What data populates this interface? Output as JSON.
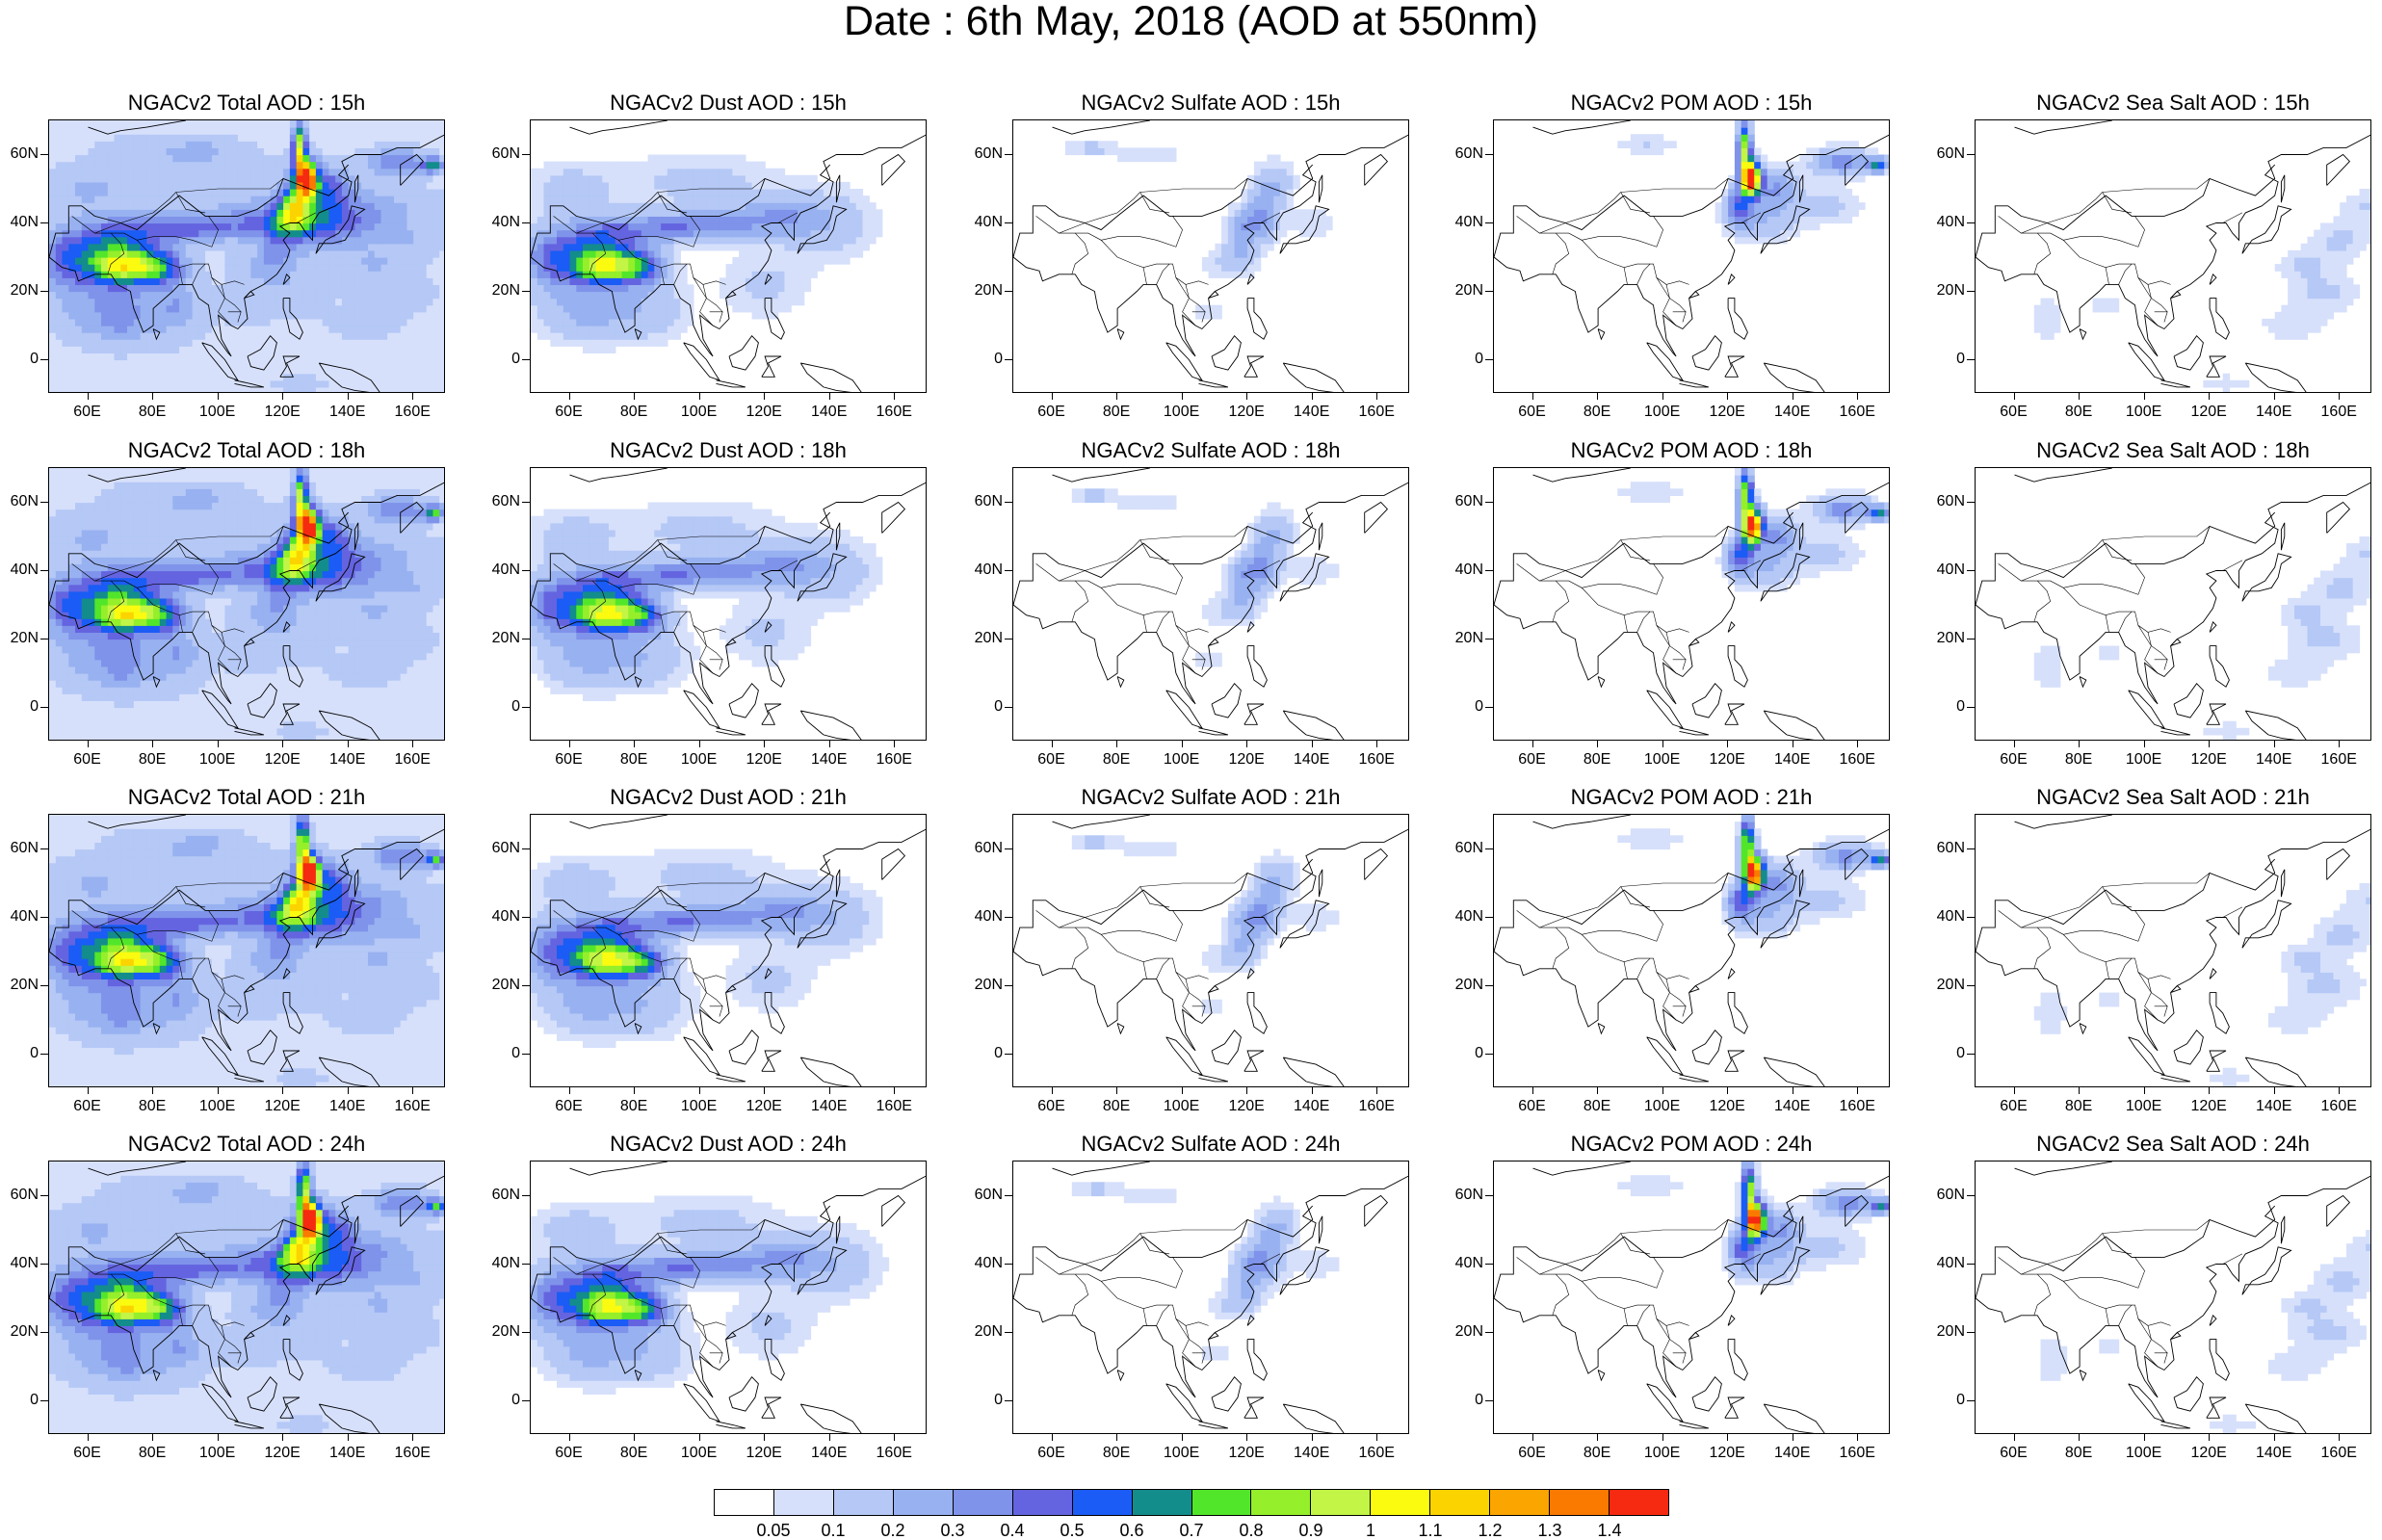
{
  "title": "Date : 6th May, 2018 (AOD at 550nm)",
  "axes": {
    "lon_labels": [
      "60E",
      "80E",
      "100E",
      "120E",
      "140E",
      "160E"
    ],
    "lon_values": [
      60,
      80,
      100,
      120,
      140,
      160
    ],
    "lat_labels": [
      "60N",
      "40N",
      "20N",
      "0"
    ],
    "lat_values": [
      60,
      40,
      20,
      0
    ],
    "lon_range": [
      48,
      170
    ],
    "lat_range": [
      -10,
      70
    ]
  },
  "panels": [
    {
      "title": "NGACv2 Total AOD : 15h",
      "species": "total",
      "hour": 15
    },
    {
      "title": "NGACv2 Dust AOD : 15h",
      "species": "dust",
      "hour": 15
    },
    {
      "title": "NGACv2 Sulfate AOD : 15h",
      "species": "sulfate",
      "hour": 15
    },
    {
      "title": "NGACv2 POM AOD : 15h",
      "species": "pom",
      "hour": 15
    },
    {
      "title": "NGACv2 Sea Salt AOD : 15h",
      "species": "seasalt",
      "hour": 15
    },
    {
      "title": "NGACv2 Total AOD : 18h",
      "species": "total",
      "hour": 18
    },
    {
      "title": "NGACv2 Dust AOD : 18h",
      "species": "dust",
      "hour": 18
    },
    {
      "title": "NGACv2 Sulfate AOD : 18h",
      "species": "sulfate",
      "hour": 18
    },
    {
      "title": "NGACv2 POM AOD : 18h",
      "species": "pom",
      "hour": 18
    },
    {
      "title": "NGACv2 Sea Salt AOD : 18h",
      "species": "seasalt",
      "hour": 18
    },
    {
      "title": "NGACv2 Total AOD : 21h",
      "species": "total",
      "hour": 21
    },
    {
      "title": "NGACv2 Dust AOD : 21h",
      "species": "dust",
      "hour": 21
    },
    {
      "title": "NGACv2 Sulfate AOD : 21h",
      "species": "sulfate",
      "hour": 21
    },
    {
      "title": "NGACv2 POM AOD : 21h",
      "species": "pom",
      "hour": 21
    },
    {
      "title": "NGACv2 Sea Salt AOD : 21h",
      "species": "seasalt",
      "hour": 21
    },
    {
      "title": "NGACv2 Total AOD : 24h",
      "species": "total",
      "hour": 24
    },
    {
      "title": "NGACv2 Dust AOD : 24h",
      "species": "dust",
      "hour": 24
    },
    {
      "title": "NGACv2 Sulfate AOD : 24h",
      "species": "sulfate",
      "hour": 24
    },
    {
      "title": "NGACv2 POM AOD : 24h",
      "species": "pom",
      "hour": 24
    },
    {
      "title": "NGACv2 Sea Salt  AOD : 24h",
      "species": "seasalt",
      "hour": 24
    }
  ],
  "colorbar": {
    "labels": [
      "0.05",
      "0.1",
      "0.2",
      "0.3",
      "0.4",
      "0.5",
      "0.6",
      "0.7",
      "0.8",
      "0.9",
      "1",
      "1.1",
      "1.2",
      "1.3",
      "1.4"
    ],
    "colors": [
      "#ffffff",
      "#d6e0fb",
      "#b5c8f6",
      "#98b1f0",
      "#7f93ea",
      "#6464e0",
      "#1a5cf5",
      "#138c8c",
      "#52e62a",
      "#95ef2a",
      "#c2f545",
      "#fbfb10",
      "#fbd400",
      "#fba500",
      "#fa7a00",
      "#f52a10"
    ]
  }
}
